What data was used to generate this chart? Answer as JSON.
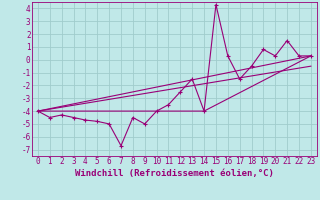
{
  "xlabel": "Windchill (Refroidissement éolien,°C)",
  "bg_color": "#c0e8e8",
  "grid_color": "#a0cccc",
  "line_color": "#990077",
  "xlim": [
    -0.5,
    23.5
  ],
  "ylim": [
    -7.5,
    4.5
  ],
  "xticks": [
    0,
    1,
    2,
    3,
    4,
    5,
    6,
    7,
    8,
    9,
    10,
    11,
    12,
    13,
    14,
    15,
    16,
    17,
    18,
    19,
    20,
    21,
    22,
    23
  ],
  "yticks": [
    -7,
    -6,
    -5,
    -4,
    -3,
    -2,
    -1,
    0,
    1,
    2,
    3,
    4
  ],
  "series1_x": [
    0,
    1,
    2,
    3,
    4,
    5,
    6,
    7,
    8,
    9,
    10,
    11,
    12,
    13,
    14,
    15,
    16,
    17,
    18,
    19,
    20,
    21,
    22,
    23
  ],
  "series1_y": [
    -4.0,
    -4.5,
    -4.3,
    -4.5,
    -4.7,
    -4.8,
    -5.0,
    -6.7,
    -4.5,
    -5.0,
    -4.0,
    -3.5,
    -2.5,
    -1.5,
    -4.0,
    4.3,
    0.3,
    -1.5,
    -0.5,
    0.8,
    0.3,
    1.5,
    0.3,
    0.3
  ],
  "series2_x": [
    0,
    14,
    23
  ],
  "series2_y": [
    -4.0,
    -4.0,
    0.3
  ],
  "series3_x": [
    0,
    23
  ],
  "series3_y": [
    -4.0,
    -0.5
  ],
  "series4_x": [
    0,
    23
  ],
  "series4_y": [
    -4.0,
    0.3
  ],
  "xlabel_fontsize": 6.5,
  "tick_fontsize": 5.5
}
